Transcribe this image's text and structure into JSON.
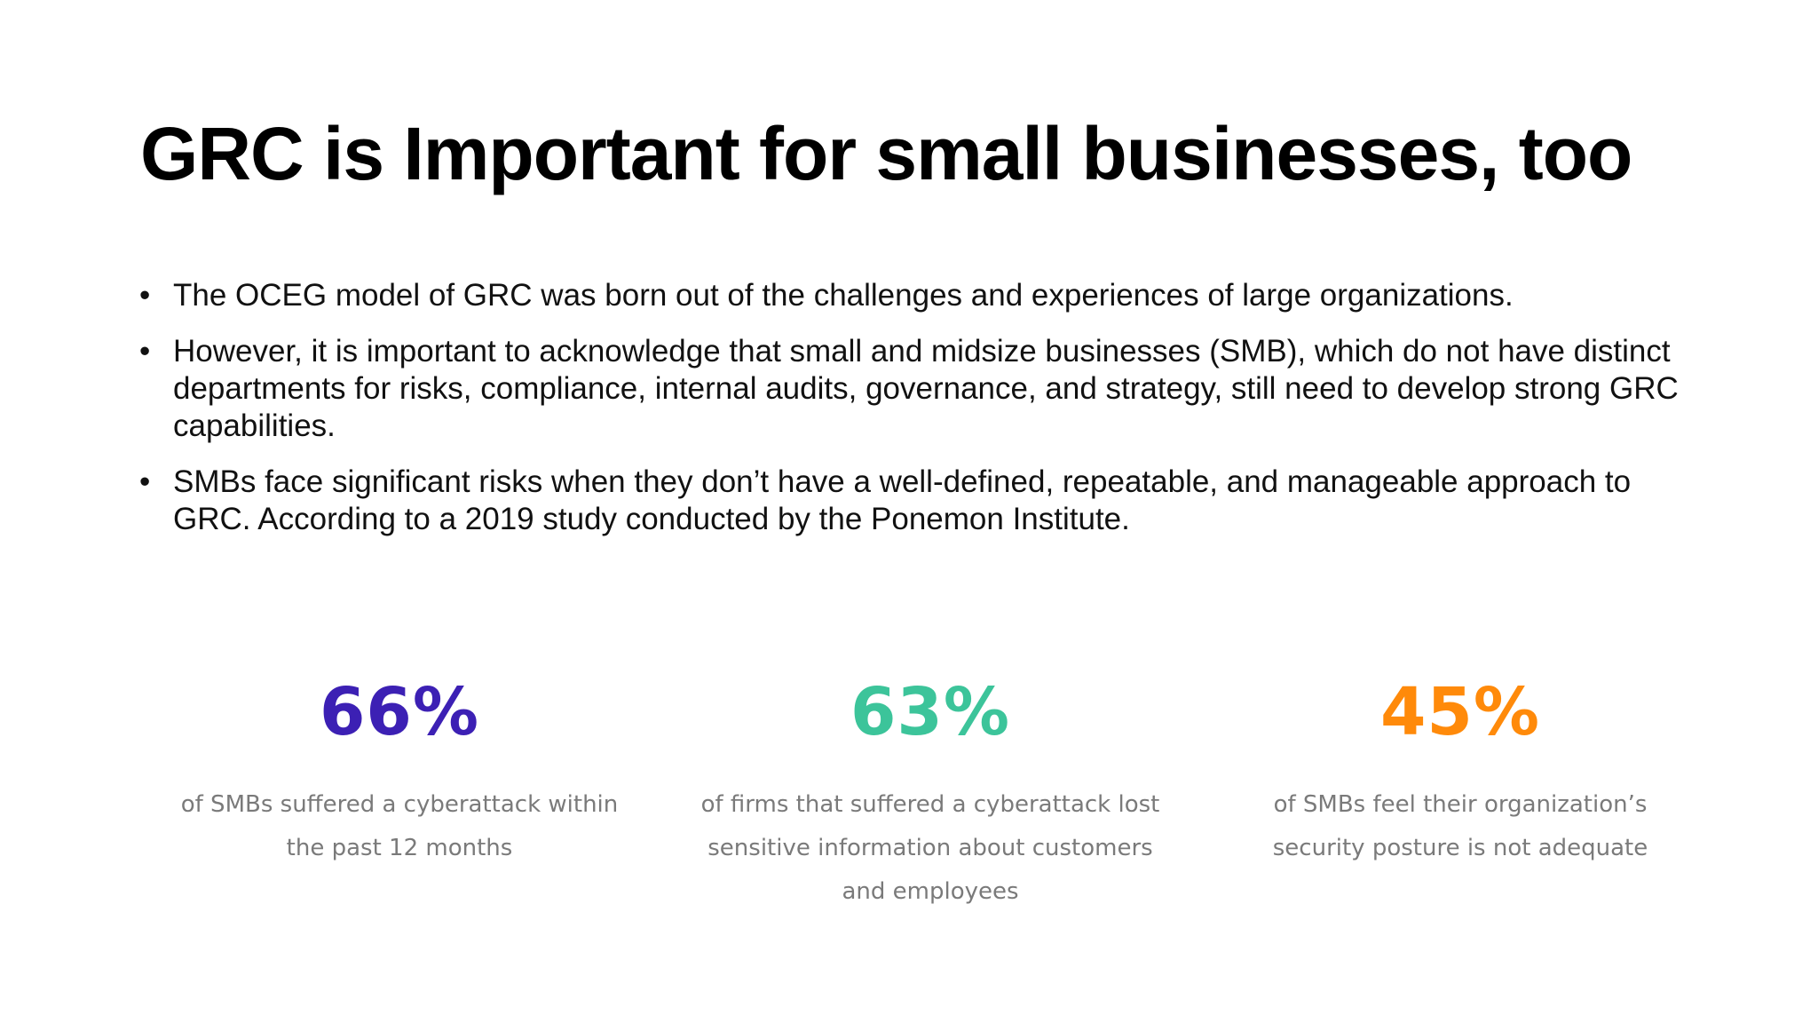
{
  "slide": {
    "title": "GRC is Important for small businesses, too",
    "bullets": [
      {
        "marker": "•",
        "text": "The OCEG model of GRC was born out of the challenges and experiences of large organizations."
      },
      {
        "marker": "•",
        "text": "However, it is important to acknowledge that small and midsize businesses (SMB), which do not have distinct departments for risks, compliance, internal audits, governance, and strategy, still need to develop strong GRC capabilities."
      },
      {
        "marker": "•",
        "text": "SMBs face significant risks when they don’t have a well-defined, repeatable, and manageable approach to GRC. According to a 2019 study conducted by the Ponemon Institute."
      }
    ],
    "stats": [
      {
        "value": "66%",
        "color": "#3c20b4",
        "description": "of SMBs suffered a cyberattack within the past 12 months"
      },
      {
        "value": "63%",
        "color": "#3cc49a",
        "description": "of firms that suffered a cyberattack lost sensitive information about customers and employees"
      },
      {
        "value": "45%",
        "color": "#ff8a0a",
        "description": "of SMBs feel their organization’s security posture is not adequate"
      }
    ]
  }
}
